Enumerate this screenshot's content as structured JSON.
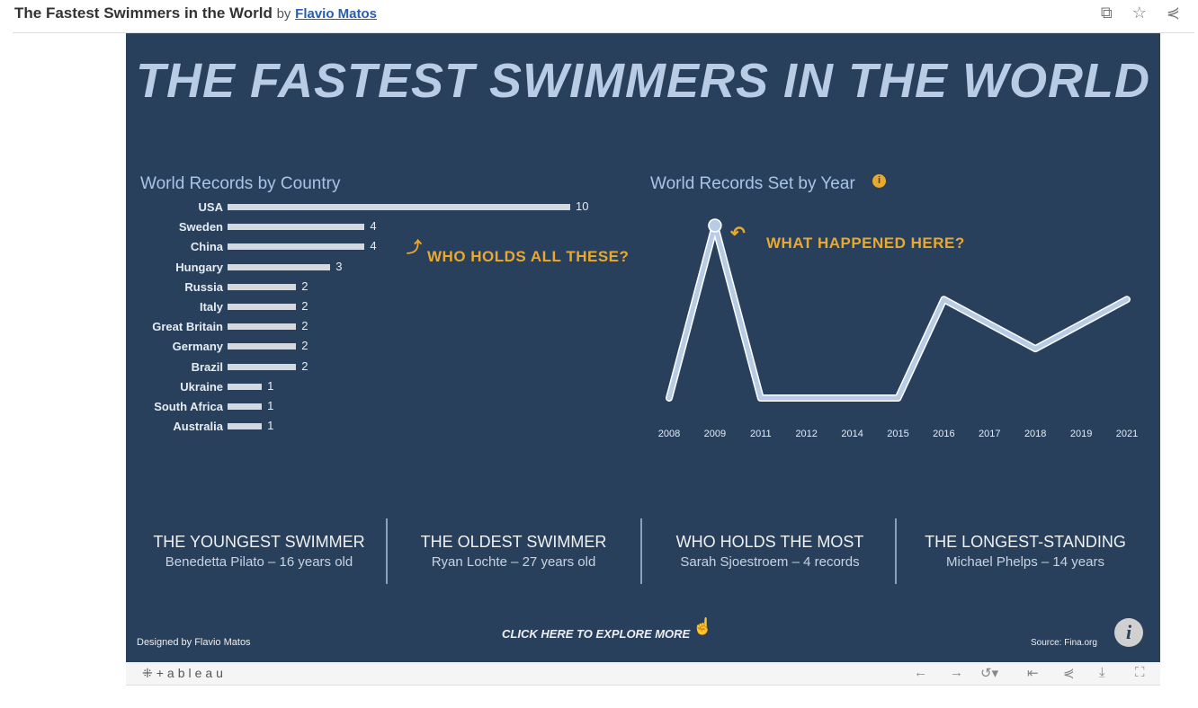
{
  "header": {
    "title": "The Fastest Swimmers in the World",
    "by": "by",
    "author": "Flavio Matos"
  },
  "header_icons": [
    "copy-icon",
    "star-icon",
    "share-icon"
  ],
  "dashboard": {
    "title": "THE FASTEST SWIMMERS IN THE WORLD",
    "bar_title": "World Records by Country",
    "line_title": "World Records Set by Year",
    "annotation_bar": "WHO HOLDS ALL THESE?",
    "annotation_line": "WHAT HAPPENED HERE?",
    "kpis": [
      {
        "title": "THE YOUNGEST SWIMMER",
        "value": "Benedetta Pilato – 16 years old"
      },
      {
        "title": "THE OLDEST SWIMMER",
        "value": "Ryan Lochte – 27 years old"
      },
      {
        "title": "WHO HOLDS THE MOST",
        "value": "Sarah Sjoestroem – 4 records"
      },
      {
        "title": "THE LONGEST-STANDING",
        "value": "Michael Phelps – 14 years"
      }
    ],
    "designed_by": "Designed by Flavio Matos",
    "explore": "CLICK HERE TO EXPLORE MORE",
    "source": "Source: Fina.org"
  },
  "toolbar": {
    "logo": "+ableau"
  },
  "accent": "#e8a92e",
  "chart_data": [
    {
      "type": "bar",
      "title": "World Records by Country",
      "categories": [
        "USA",
        "Sweden",
        "China",
        "Hungary",
        "Russia",
        "Italy",
        "Great Britain",
        "Germany",
        "Brazil",
        "Ukraine",
        "South Africa",
        "Australia"
      ],
      "values": [
        10,
        4,
        4,
        3,
        2,
        2,
        2,
        2,
        2,
        1,
        1,
        1
      ]
    },
    {
      "type": "line",
      "title": "World Records Set by Year",
      "x": [
        "2008",
        "2009",
        "2011",
        "2012",
        "2014",
        "2015",
        "2016",
        "2017",
        "2018",
        "2019",
        "2021"
      ],
      "values": [
        1,
        8,
        1,
        1,
        1,
        1,
        5,
        4,
        3,
        4,
        5
      ],
      "ylim": [
        1,
        8
      ]
    }
  ]
}
